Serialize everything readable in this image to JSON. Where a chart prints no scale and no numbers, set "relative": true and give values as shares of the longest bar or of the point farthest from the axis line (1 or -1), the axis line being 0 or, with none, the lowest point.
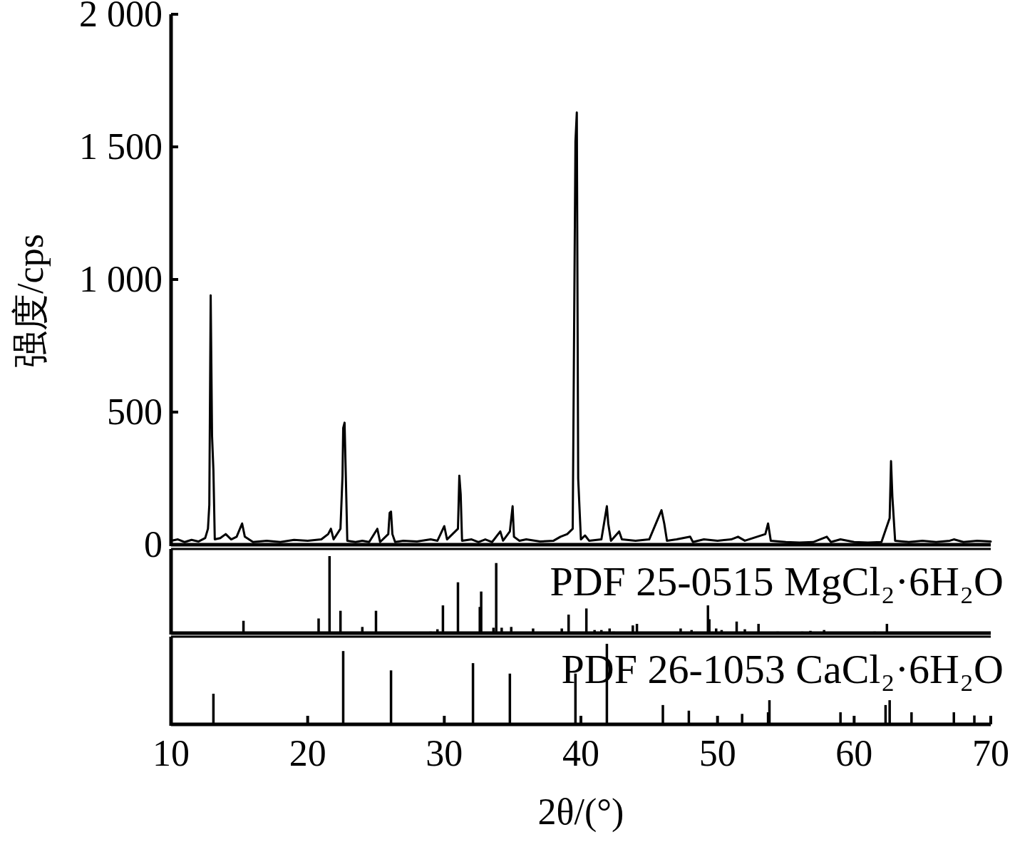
{
  "chart_data": [
    {
      "type": "line",
      "ylabel": "强度/cps",
      "xlim": [
        10,
        70
      ],
      "ylim": [
        0,
        2000
      ],
      "yticks": [
        {
          "value": 0,
          "label": "0"
        },
        {
          "value": 500,
          "label": "500"
        },
        {
          "value": 1000,
          "label": "1 000"
        },
        {
          "value": 1500,
          "label": "1 500"
        },
        {
          "value": 2000,
          "label": "2 000"
        }
      ],
      "tick_labels": "y",
      "line_style": "solid",
      "series": [
        {
          "color": "#000000",
          "x": [
            10,
            10.5,
            11,
            11.5,
            12,
            12.5,
            12.7,
            12.8,
            12.9,
            13.0,
            13.1,
            13.2,
            13.6,
            14.0,
            14.4,
            14.8,
            15.2,
            15.4,
            16,
            17,
            18,
            19,
            20,
            21,
            21.5,
            21.7,
            21.9,
            22.4,
            22.55,
            22.6,
            22.7,
            22.8,
            22.9,
            23.5,
            24,
            24.5,
            25.1,
            25.3,
            25.9,
            26.0,
            26.1,
            26.2,
            26.4,
            27,
            28,
            29,
            29.5,
            30.0,
            30.2,
            31.0,
            31.1,
            31.2,
            31.3,
            32,
            32.5,
            33,
            33.5,
            34.1,
            34.3,
            34.8,
            35.0,
            35.1,
            35.5,
            36,
            37,
            38,
            38.5,
            39.0,
            39.4,
            39.6,
            39.7,
            39.8,
            40.0,
            40.3,
            40.6,
            41.5,
            41.9,
            42.0,
            42.2,
            42.8,
            43.0,
            44,
            45,
            45.9,
            46.1,
            46.3,
            47,
            48.0,
            48.2,
            49,
            50,
            51,
            51.5,
            52,
            53.5,
            53.7,
            53.9,
            55,
            56,
            57,
            58,
            58.3,
            59,
            60,
            61,
            62,
            62.6,
            62.7,
            62.8,
            63.0,
            64,
            65,
            66,
            67,
            67.3,
            68,
            69,
            70
          ],
          "values": [
            15,
            20,
            10,
            18,
            12,
            25,
            60,
            150,
            940,
            410,
            280,
            20,
            25,
            40,
            20,
            30,
            80,
            30,
            10,
            15,
            10,
            18,
            15,
            20,
            40,
            60,
            20,
            60,
            260,
            440,
            460,
            240,
            15,
            10,
            15,
            10,
            60,
            10,
            40,
            120,
            125,
            40,
            10,
            15,
            12,
            20,
            15,
            70,
            20,
            60,
            260,
            190,
            15,
            20,
            10,
            20,
            10,
            50,
            15,
            50,
            145,
            30,
            15,
            20,
            12,
            15,
            30,
            40,
            60,
            1520,
            1630,
            250,
            20,
            35,
            15,
            20,
            145,
            80,
            15,
            50,
            20,
            15,
            20,
            130,
            80,
            15,
            20,
            30,
            10,
            20,
            15,
            20,
            30,
            15,
            40,
            80,
            15,
            10,
            8,
            10,
            30,
            10,
            20,
            10,
            8,
            10,
            100,
            315,
            180,
            15,
            10,
            15,
            10,
            15,
            20,
            10,
            15,
            12
          ]
        }
      ]
    },
    {
      "type": "bar",
      "relative": true,
      "xlim": [
        10,
        70
      ],
      "annotations": [
        "PDF 25-0515 MgCl₂·6H₂O"
      ],
      "color": "#000000",
      "x": [
        15.3,
        20.8,
        21.6,
        22.4,
        24.0,
        25.0,
        29.0,
        29.5,
        29.9,
        31.0,
        32.6,
        32.7,
        33.6,
        33.8,
        34.2,
        34.9,
        36.5,
        38.6,
        39.1,
        40.4,
        41.0,
        41.5,
        42.1,
        42.4,
        43.8,
        44.1,
        47.3,
        48.1,
        49.3,
        49.4,
        49.9,
        50.3,
        51.4,
        52.0,
        53.0,
        54.4,
        56.2,
        56.8,
        57.8,
        61.5,
        62.4
      ],
      "values": [
        0.16,
        0.19,
        1,
        0.29,
        0.08,
        0.29,
        0.02,
        0.05,
        0.36,
        0.66,
        0.34,
        0.54,
        0.07,
        0.91,
        0.07,
        0.08,
        0.06,
        0.06,
        0.24,
        0.32,
        0.04,
        0.04,
        0.06,
        0.02,
        0.1,
        0.12,
        0.06,
        0.04,
        0.36,
        0.18,
        0.06,
        0.04,
        0.15,
        0.05,
        0.12,
        0.02,
        0.02,
        0.03,
        0.04,
        0.02,
        0.12
      ]
    },
    {
      "type": "bar",
      "relative": true,
      "xlim": [
        10,
        70
      ],
      "xticks": [
        10,
        20,
        30,
        40,
        50,
        60,
        70
      ],
      "tick_labels": "x",
      "xlabel": "2θ/(°)",
      "annotations": [
        "PDF 26-1053 CaCl₂·6H₂O"
      ],
      "color": "#000000",
      "x": [
        13.1,
        22.6,
        26.1,
        32.1,
        34.8,
        39.6,
        41.9,
        46.0,
        47.9,
        51.8,
        53.7,
        53.8,
        59.0,
        62.3,
        62.6,
        64.2,
        67.3,
        68.8
      ],
      "values": [
        0.38,
        0.91,
        0.67,
        0.76,
        0.63,
        0.63,
        1,
        0.24,
        0.17,
        0.13,
        0.15,
        0.3,
        0.15,
        0.24,
        0.3,
        0.15,
        0.15,
        0.11
      ]
    }
  ]
}
